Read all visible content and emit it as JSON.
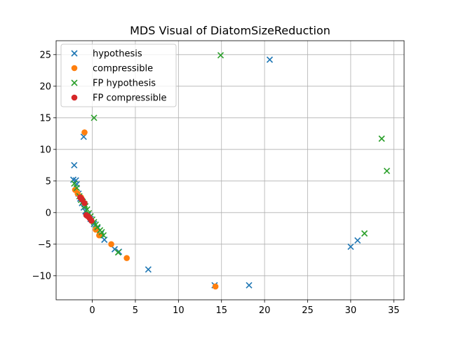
{
  "chart_data": {
    "type": "scatter",
    "title": "MDS Visual of DiatomSizeReduction",
    "xlabel": "",
    "ylabel": "",
    "xlim": [
      -4.2,
      36.2
    ],
    "ylim": [
      -13.8,
      27.2
    ],
    "xticks": [
      0,
      5,
      10,
      15,
      20,
      25,
      30,
      35
    ],
    "yticks": [
      -10,
      -5,
      0,
      5,
      10,
      15,
      20,
      25
    ],
    "grid": true,
    "legend_position": "top-left",
    "series": [
      {
        "name": "hypothesis",
        "marker": "x",
        "color": "#1f77b4",
        "points": [
          [
            20.6,
            24.2
          ],
          [
            -1.0,
            12.0
          ],
          [
            -2.1,
            7.5
          ],
          [
            -2.2,
            5.2
          ],
          [
            -1.9,
            5.1
          ],
          [
            -1.8,
            4.5
          ],
          [
            -1.6,
            3.0
          ],
          [
            -1.4,
            2.2
          ],
          [
            -1.2,
            1.5
          ],
          [
            -1.0,
            0.8
          ],
          [
            -0.8,
            0.2
          ],
          [
            -0.5,
            -0.4
          ],
          [
            -0.2,
            -1.0
          ],
          [
            0.2,
            -1.8
          ],
          [
            0.6,
            -2.5
          ],
          [
            1.0,
            -3.4
          ],
          [
            1.4,
            -4.3
          ],
          [
            2.6,
            -5.8
          ],
          [
            3.1,
            -6.2
          ],
          [
            6.5,
            -9.0
          ],
          [
            14.2,
            -11.5
          ],
          [
            18.2,
            -11.5
          ],
          [
            30.0,
            -5.4
          ],
          [
            30.8,
            -4.4
          ]
        ]
      },
      {
        "name": "compressible",
        "marker": "circle",
        "color": "#ff7f0e",
        "points": [
          [
            -0.9,
            12.7
          ],
          [
            -2.0,
            3.6
          ],
          [
            -1.7,
            3.0
          ],
          [
            -1.3,
            2.4
          ],
          [
            0.4,
            -2.7
          ],
          [
            0.8,
            -3.6
          ],
          [
            2.2,
            -5.0
          ],
          [
            4.0,
            -7.2
          ],
          [
            14.3,
            -11.7
          ]
        ]
      },
      {
        "name": "FP hypothesis",
        "marker": "x",
        "color": "#2ca02c",
        "points": [
          [
            14.9,
            24.9
          ],
          [
            0.2,
            15.0
          ],
          [
            -2.1,
            4.6
          ],
          [
            -1.8,
            3.9
          ],
          [
            -1.5,
            2.6
          ],
          [
            -1.3,
            2.0
          ],
          [
            -1.1,
            1.7
          ],
          [
            -0.9,
            1.3
          ],
          [
            -0.8,
            1.0
          ],
          [
            -0.6,
            0.5
          ],
          [
            -0.4,
            -0.1
          ],
          [
            -0.2,
            -0.6
          ],
          [
            0.0,
            -1.1
          ],
          [
            0.2,
            -1.5
          ],
          [
            0.4,
            -1.9
          ],
          [
            0.6,
            -2.3
          ],
          [
            0.9,
            -2.8
          ],
          [
            1.1,
            -3.1
          ],
          [
            1.3,
            -3.6
          ],
          [
            3.0,
            -6.3
          ],
          [
            31.6,
            -3.3
          ],
          [
            33.6,
            11.7
          ],
          [
            34.2,
            6.6
          ]
        ]
      },
      {
        "name": "FP compressible",
        "marker": "circle",
        "color": "#d62728",
        "points": [
          [
            -1.4,
            2.4
          ],
          [
            -1.2,
            2.1
          ],
          [
            -0.9,
            1.5
          ],
          [
            -0.7,
            -0.4
          ],
          [
            -0.5,
            -0.6
          ],
          [
            -0.3,
            -0.9
          ],
          [
            -0.1,
            -1.3
          ]
        ]
      }
    ]
  }
}
